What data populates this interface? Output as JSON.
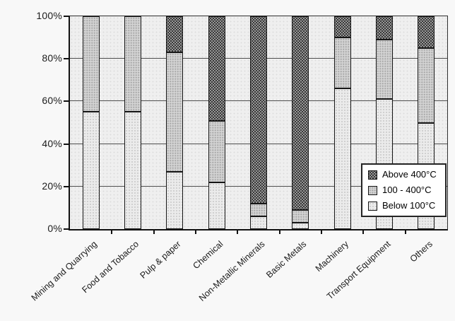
{
  "chart_data": {
    "type": "bar",
    "subtype": "stacked-100-percent",
    "title": "",
    "xlabel": "",
    "ylabel": "",
    "categories": [
      "Mining and Quarrying",
      "Food and Tobacco",
      "Pulp & paper",
      "Chemical",
      "Non-Metallic Minerals",
      "Basic Metals",
      "Machinery",
      "Transport Equipment",
      "Others"
    ],
    "series": [
      {
        "name": "Below 100°C",
        "stack_order": "bottom",
        "fill": "light-dotted",
        "color": "#ebebeb",
        "values": [
          55,
          55,
          27,
          22,
          6,
          3,
          66,
          61,
          50
        ]
      },
      {
        "name": "100 - 400°C",
        "stack_order": "middle",
        "fill": "medium-dotted",
        "color": "#d3d3d3",
        "values": [
          45,
          45,
          56,
          29,
          6,
          6,
          24,
          28,
          35
        ]
      },
      {
        "name": "Above 400°C",
        "stack_order": "top",
        "fill": "dark-checker",
        "color": "#989898",
        "values": [
          0,
          0,
          17,
          49,
          88,
          91,
          10,
          11,
          15
        ]
      }
    ],
    "ylim": [
      0,
      100
    ],
    "yticks": [
      "0%",
      "20%",
      "40%",
      "60%",
      "80%",
      "100%"
    ],
    "grid": "horizontal, 20% steps, on",
    "legend_position": "inside-right"
  },
  "legend": {
    "items": [
      {
        "label": "Above 400°C",
        "swatch": "above"
      },
      {
        "label": "100 - 400°C",
        "swatch": "mid"
      },
      {
        "label": "Below 100°C",
        "swatch": "below"
      }
    ]
  },
  "colors": {
    "page_background": "#f8f8f8",
    "plot_background": "#efefef",
    "gridline": "#4c4c4c",
    "bar_outline": "#161616",
    "text": "#1c1c1c",
    "legend_background": "#ffffff"
  }
}
